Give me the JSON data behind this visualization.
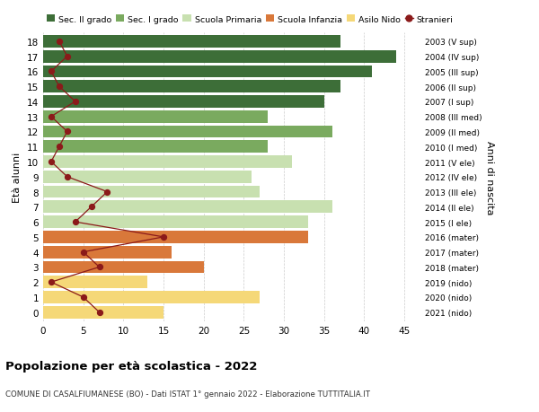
{
  "ages": [
    18,
    17,
    16,
    15,
    14,
    13,
    12,
    11,
    10,
    9,
    8,
    7,
    6,
    5,
    4,
    3,
    2,
    1,
    0
  ],
  "right_labels": [
    "2003 (V sup)",
    "2004 (IV sup)",
    "2005 (III sup)",
    "2006 (II sup)",
    "2007 (I sup)",
    "2008 (III med)",
    "2009 (II med)",
    "2010 (I med)",
    "2011 (V ele)",
    "2012 (IV ele)",
    "2013 (III ele)",
    "2014 (II ele)",
    "2015 (I ele)",
    "2016 (mater)",
    "2017 (mater)",
    "2018 (mater)",
    "2019 (nido)",
    "2020 (nido)",
    "2021 (nido)"
  ],
  "bar_values": [
    37,
    44,
    41,
    37,
    35,
    28,
    36,
    28,
    31,
    26,
    27,
    36,
    33,
    33,
    16,
    20,
    13,
    27,
    15
  ],
  "bar_colors": [
    "#3d6e38",
    "#3d6e38",
    "#3d6e38",
    "#3d6e38",
    "#3d6e38",
    "#7aaa5f",
    "#7aaa5f",
    "#7aaa5f",
    "#c8e0b0",
    "#c8e0b0",
    "#c8e0b0",
    "#c8e0b0",
    "#c8e0b0",
    "#d9783a",
    "#d9783a",
    "#d9783a",
    "#f5d878",
    "#f5d878",
    "#f5d878"
  ],
  "stranieri_values": [
    2,
    3,
    1,
    2,
    4,
    1,
    3,
    2,
    1,
    3,
    8,
    6,
    4,
    15,
    5,
    7,
    1,
    5,
    7
  ],
  "title": "Popolazione per età scolastica - 2022",
  "subtitle": "COMUNE DI CASALFIUMANESE (BO) - Dati ISTAT 1° gennaio 2022 - Elaborazione TUTTITALIA.IT",
  "ylabel": "Età alunni",
  "ylabel2": "Anni di nascita",
  "xlim": [
    0,
    47
  ],
  "xticks": [
    0,
    5,
    10,
    15,
    20,
    25,
    30,
    35,
    40,
    45
  ],
  "legend_labels": [
    "Sec. II grado",
    "Sec. I grado",
    "Scuola Primaria",
    "Scuola Infanzia",
    "Asilo Nido",
    "Stranieri"
  ],
  "legend_colors": [
    "#3d6e38",
    "#7aaa5f",
    "#c8e0b0",
    "#d9783a",
    "#f5d878",
    "#8b1a1a"
  ],
  "bg_color": "#ffffff",
  "grid_color": "#cccccc",
  "bar_height": 0.82
}
